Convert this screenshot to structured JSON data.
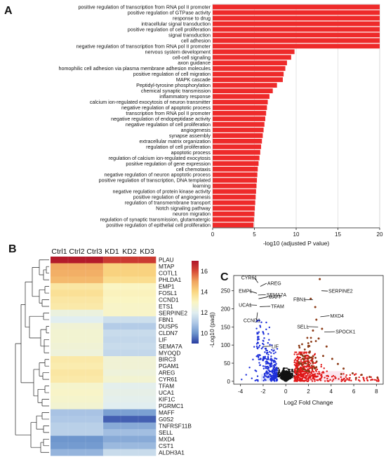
{
  "panels": {
    "a": "A",
    "b": "B",
    "c": "C"
  },
  "chart_data": [
    {
      "type": "bar",
      "orientation": "horizontal",
      "xlabel": "-log10 (adjusted P value)",
      "xlim": [
        0,
        20
      ],
      "xticks": [
        "0",
        "5",
        "10",
        "15",
        "20"
      ],
      "bar_color": "#ee2a2a",
      "categories": [
        "positive regulation of transcription from RNA pol II promoter",
        "positive regulation of GTPase activity",
        "response to drug",
        "intracellular signal transduction",
        "positive regulation of cell proliferation",
        "signal transduction",
        "cell adhesion",
        "negative regulation of transcription from RNA pol II promoter",
        "nervous system development",
        "cell-cell signaling",
        "axon guidance",
        "homophilic cell adhesion via plasma membrane adhesion molecules",
        "positive regulation of cell migration",
        "MAPK cascade",
        "Peptidyl-tyrosine phosphorylation",
        "chemical synaptic transmission",
        "inflammatory response",
        "calcium ion-regulated exocytosis of neuron transmitter",
        "negative regulation of apoptotic process",
        "transcription from RNA pol II promoter",
        "negative regulation of endopeptidase activity",
        "negative regulation of cell proliferation",
        "angiogenesis",
        "synapse assembly",
        "extracellular matrix organization",
        "regulation of cell proliferation",
        "apoptotic process",
        "regulation of calcium ion-regulated exocytosis",
        "positive regulation of gene expression",
        "cell chemotaxis",
        "negative regulation of neuron apoptotic process",
        "positive regulation of transcription, DNA templated",
        "learning",
        "negative regulation of protein kinase activity",
        "positive regulation of angiogenesis",
        "regulation of transmembrane transport",
        "Notch signaling pathway",
        "neuron migration",
        "regulation of synaptic transmission, glutamatergic",
        "positive regulation of epithelial cell proliferation"
      ],
      "values": [
        20,
        20,
        20,
        20,
        20,
        20,
        20,
        20,
        9.8,
        9.4,
        8.9,
        8.7,
        8.5,
        8.4,
        7.7,
        7.2,
        6.8,
        6.6,
        6.5,
        6.4,
        6.3,
        6.2,
        6.1,
        6.0,
        5.9,
        5.8,
        5.7,
        5.6,
        5.5,
        5.4,
        5.35,
        5.3,
        5.25,
        5.2,
        5.15,
        5.1,
        5.05,
        5.0,
        4.95,
        4.9
      ]
    },
    {
      "type": "heatmap",
      "columns": [
        "Ctrl1",
        "Ctrl2",
        "Ctrl3",
        "KD1",
        "KD2",
        "KD3"
      ],
      "rows": [
        "PLAU",
        "MTAP",
        "COTL1",
        "PHLDA1",
        "EMP1",
        "FOSL1",
        "CCND1",
        "ETS1",
        "SERPINE2",
        "FBN1",
        "DUSP5",
        "CLDN7",
        "LIF",
        "SEMA7A",
        "MYOQD",
        "BIRC3",
        "PGAM1",
        "AREG",
        "CYR61",
        "TFAM",
        "UCA1",
        "KIF1C",
        "PGRMC1",
        "MAFF",
        "G0S2",
        "TNFRSF11B",
        "SELL",
        "MXD4",
        "CST1",
        "ALDH3A1"
      ],
      "colorbar_ticks": [
        "16",
        "14",
        "12",
        "10"
      ],
      "colorbar_range": [
        9,
        17
      ],
      "values": [
        [
          16.9,
          16.9,
          16.9,
          16.3,
          16.3,
          16.3
        ],
        [
          14.9,
          14.9,
          14.9,
          14.1,
          14.1,
          14.1
        ],
        [
          14.8,
          14.8,
          14.8,
          14.1,
          14.1,
          14.1
        ],
        [
          14.6,
          14.6,
          14.6,
          13.8,
          13.8,
          13.8
        ],
        [
          13.5,
          13.5,
          13.5,
          13.0,
          13.0,
          13.0
        ],
        [
          13.7,
          13.7,
          13.7,
          13.1,
          13.1,
          13.1
        ],
        [
          13.5,
          13.5,
          13.5,
          13.0,
          13.0,
          13.0
        ],
        [
          13.4,
          13.4,
          13.4,
          12.9,
          12.9,
          12.9
        ],
        [
          12.4,
          12.4,
          12.4,
          12.9,
          12.9,
          12.9
        ],
        [
          12.0,
          12.0,
          12.0,
          11.6,
          11.6,
          11.6
        ],
        [
          12.6,
          12.6,
          12.6,
          11.1,
          11.1,
          11.1
        ],
        [
          12.7,
          12.7,
          12.7,
          11.5,
          11.5,
          11.5
        ],
        [
          12.7,
          12.7,
          12.7,
          11.4,
          11.4,
          11.4
        ],
        [
          12.6,
          12.6,
          12.6,
          11.5,
          11.5,
          11.5
        ],
        [
          12.5,
          12.5,
          12.5,
          11.4,
          11.4,
          11.4
        ],
        [
          13.4,
          13.4,
          13.4,
          12.6,
          12.6,
          12.6
        ],
        [
          13.3,
          13.3,
          13.3,
          12.6,
          12.6,
          12.6
        ],
        [
          13.5,
          13.5,
          13.5,
          12.5,
          12.5,
          12.5
        ],
        [
          13.4,
          13.4,
          13.4,
          12.7,
          12.7,
          12.7
        ],
        [
          12.8,
          12.8,
          12.8,
          12.1,
          12.1,
          12.1
        ],
        [
          12.9,
          12.9,
          12.9,
          12.2,
          12.2,
          12.2
        ],
        [
          12.8,
          12.8,
          12.8,
          12.1,
          12.1,
          12.1
        ],
        [
          12.7,
          12.7,
          12.7,
          12.0,
          12.0,
          12.0
        ],
        [
          10.9,
          10.9,
          10.9,
          10.2,
          10.2,
          10.2
        ],
        [
          11.0,
          11.0,
          11.0,
          9.4,
          9.4,
          9.4
        ],
        [
          11.2,
          11.2,
          11.2,
          10.4,
          10.4,
          10.4
        ],
        [
          11.2,
          11.2,
          11.2,
          10.8,
          10.8,
          10.8
        ],
        [
          10.0,
          10.0,
          10.0,
          10.4,
          10.4,
          10.4
        ],
        [
          10.1,
          10.1,
          10.1,
          10.7,
          10.7,
          10.7
        ],
        [
          10.6,
          10.6,
          10.6,
          11.5,
          11.5,
          11.5
        ]
      ]
    },
    {
      "type": "scatter",
      "xlabel": "Log2 Fold Change",
      "ylabel": "-Log10 (padj)",
      "xlim": [
        -4.6,
        8.6
      ],
      "ylim": [
        -8,
        292
      ],
      "xticks": [
        -4,
        -2,
        0,
        2,
        4,
        6,
        8
      ],
      "yticks": [
        0,
        50,
        100,
        150,
        200,
        250
      ],
      "colors": {
        "down": "#1d2fd9",
        "ns": "#111111",
        "up": "#e01818",
        "up_strong": "#8b3a16"
      },
      "labels": [
        {
          "gene": "CYR61",
          "x": -2.45,
          "y": 272
        },
        {
          "gene": "AREG",
          "x": -2.25,
          "y": 262
        },
        {
          "gene": "EMP1",
          "x": -2.55,
          "y": 243
        },
        {
          "gene": "SEMA7A",
          "x": -2.45,
          "y": 238
        },
        {
          "gene": "MAFF",
          "x": -2.4,
          "y": 228
        },
        {
          "gene": "UCA1",
          "x": -2.55,
          "y": 210
        },
        {
          "gene": "TFAM",
          "x": -2.3,
          "y": 206
        },
        {
          "gene": "CCND1",
          "x": -2.5,
          "y": 190
        },
        {
          "gene": "LIF",
          "x": -2.0,
          "y": 96
        },
        {
          "gene": "SERPINE2",
          "x": 3.15,
          "y": 250
        },
        {
          "gene": "FBN1",
          "x": 2.4,
          "y": 225
        },
        {
          "gene": "MXD4",
          "x": 3.05,
          "y": 178
        },
        {
          "gene": "SELL",
          "x": 2.85,
          "y": 150
        },
        {
          "gene": "SPOCK1",
          "x": 3.4,
          "y": 136
        }
      ]
    }
  ]
}
